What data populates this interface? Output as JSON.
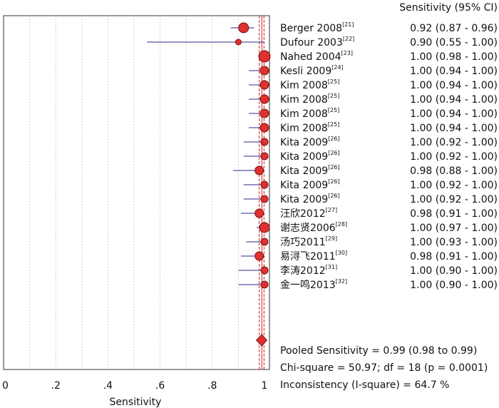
{
  "chart_data": {
    "type": "forest",
    "header": "Sensitivity (95% CI)",
    "xlabel": "Sensitivity",
    "xlim": [
      0,
      1
    ],
    "ticks": [
      "0",
      ".2",
      ".4",
      ".6",
      ".8",
      "1"
    ],
    "tick_values": [
      0,
      0.2,
      0.4,
      0.6,
      0.8,
      1.0
    ],
    "grid": true,
    "studies": [
      {
        "name": "Berger 2008",
        "ref": "[21]",
        "est": 0.92,
        "lo": 0.87,
        "hi": 0.96,
        "ci_text": "0.92 (0.87 - 0.96)"
      },
      {
        "name": "Dufour 2003",
        "ref": "[22]",
        "est": 0.9,
        "lo": 0.55,
        "hi": 1.0,
        "ci_text": "0.90 (0.55 - 1.00)"
      },
      {
        "name": "Nahed 2004",
        "ref": "[23]",
        "est": 1.0,
        "lo": 0.98,
        "hi": 1.0,
        "ci_text": "1.00 (0.98 - 1.00)"
      },
      {
        "name": "Kesli 2009",
        "ref": "[24]",
        "est": 1.0,
        "lo": 0.94,
        "hi": 1.0,
        "ci_text": "1.00 (0.94 - 1.00)"
      },
      {
        "name": "Kim 2008",
        "ref": "[25]",
        "est": 1.0,
        "lo": 0.94,
        "hi": 1.0,
        "ci_text": "1.00 (0.94 - 1.00)"
      },
      {
        "name": "Kim 2008",
        "ref": "[25]",
        "est": 1.0,
        "lo": 0.94,
        "hi": 1.0,
        "ci_text": "1.00 (0.94 - 1.00)"
      },
      {
        "name": "Kim 2008",
        "ref": "[25]",
        "est": 1.0,
        "lo": 0.94,
        "hi": 1.0,
        "ci_text": "1.00 (0.94 - 1.00)"
      },
      {
        "name": "Kim 2008",
        "ref": "[25]",
        "est": 1.0,
        "lo": 0.94,
        "hi": 1.0,
        "ci_text": "1.00 (0.94 - 1.00)"
      },
      {
        "name": "Kita 2009",
        "ref": "[26]",
        "est": 1.0,
        "lo": 0.92,
        "hi": 1.0,
        "ci_text": "1.00 (0.92 - 1.00)"
      },
      {
        "name": "Kita 2009",
        "ref": "[26]",
        "est": 1.0,
        "lo": 0.92,
        "hi": 1.0,
        "ci_text": "1.00 (0.92 - 1.00)"
      },
      {
        "name": "Kita 2009",
        "ref": "[26]",
        "est": 0.98,
        "lo": 0.88,
        "hi": 1.0,
        "ci_text": "0.98 (0.88 - 1.00)"
      },
      {
        "name": "Kita 2009",
        "ref": "[26]",
        "est": 1.0,
        "lo": 0.92,
        "hi": 1.0,
        "ci_text": "1.00 (0.92 - 1.00)"
      },
      {
        "name": "Kita 2009",
        "ref": "[26]",
        "est": 1.0,
        "lo": 0.92,
        "hi": 1.0,
        "ci_text": "1.00 (0.92 - 1.00)"
      },
      {
        "name": "汪欣2012",
        "ref": "[27]",
        "est": 0.98,
        "lo": 0.91,
        "hi": 1.0,
        "ci_text": "0.98 (0.91 - 1.00)"
      },
      {
        "name": "谢志贤2006",
        "ref": "[28]",
        "est": 1.0,
        "lo": 0.97,
        "hi": 1.0,
        "ci_text": "1.00 (0.97 - 1.00)"
      },
      {
        "name": "汤巧2011",
        "ref": "[29]",
        "est": 1.0,
        "lo": 0.93,
        "hi": 1.0,
        "ci_text": "1.00 (0.93 - 1.00)"
      },
      {
        "name": "易浔飞2011",
        "ref": "[30]",
        "est": 0.98,
        "lo": 0.91,
        "hi": 1.0,
        "ci_text": "0.98 (0.91 - 1.00)"
      },
      {
        "name": "李涛2012",
        "ref": "[31]",
        "est": 1.0,
        "lo": 0.9,
        "hi": 1.0,
        "ci_text": "1.00 (0.90 - 1.00)"
      },
      {
        "name": "金一鸣2013",
        "ref": "[32]",
        "est": 1.0,
        "lo": 0.9,
        "hi": 1.0,
        "ci_text": "1.00 (0.90 - 1.00)"
      }
    ],
    "pooled": {
      "est": 0.99,
      "lo": 0.98,
      "hi": 0.99
    },
    "pooled_text": "Pooled Sensitivity = 0.99 (0.98 to 0.99)",
    "chi_text": "Chi-square = 50.97; df =  18 (p = 0.0001)",
    "incons_text": "Inconsistency (I-square) = 64.7 %",
    "colors": {
      "marker": "#e03030",
      "marker_edge": "#7a1010",
      "ci_line": "#2a2a8a",
      "ref_line": "#cc2222",
      "grid": "#d0d0d0"
    }
  }
}
